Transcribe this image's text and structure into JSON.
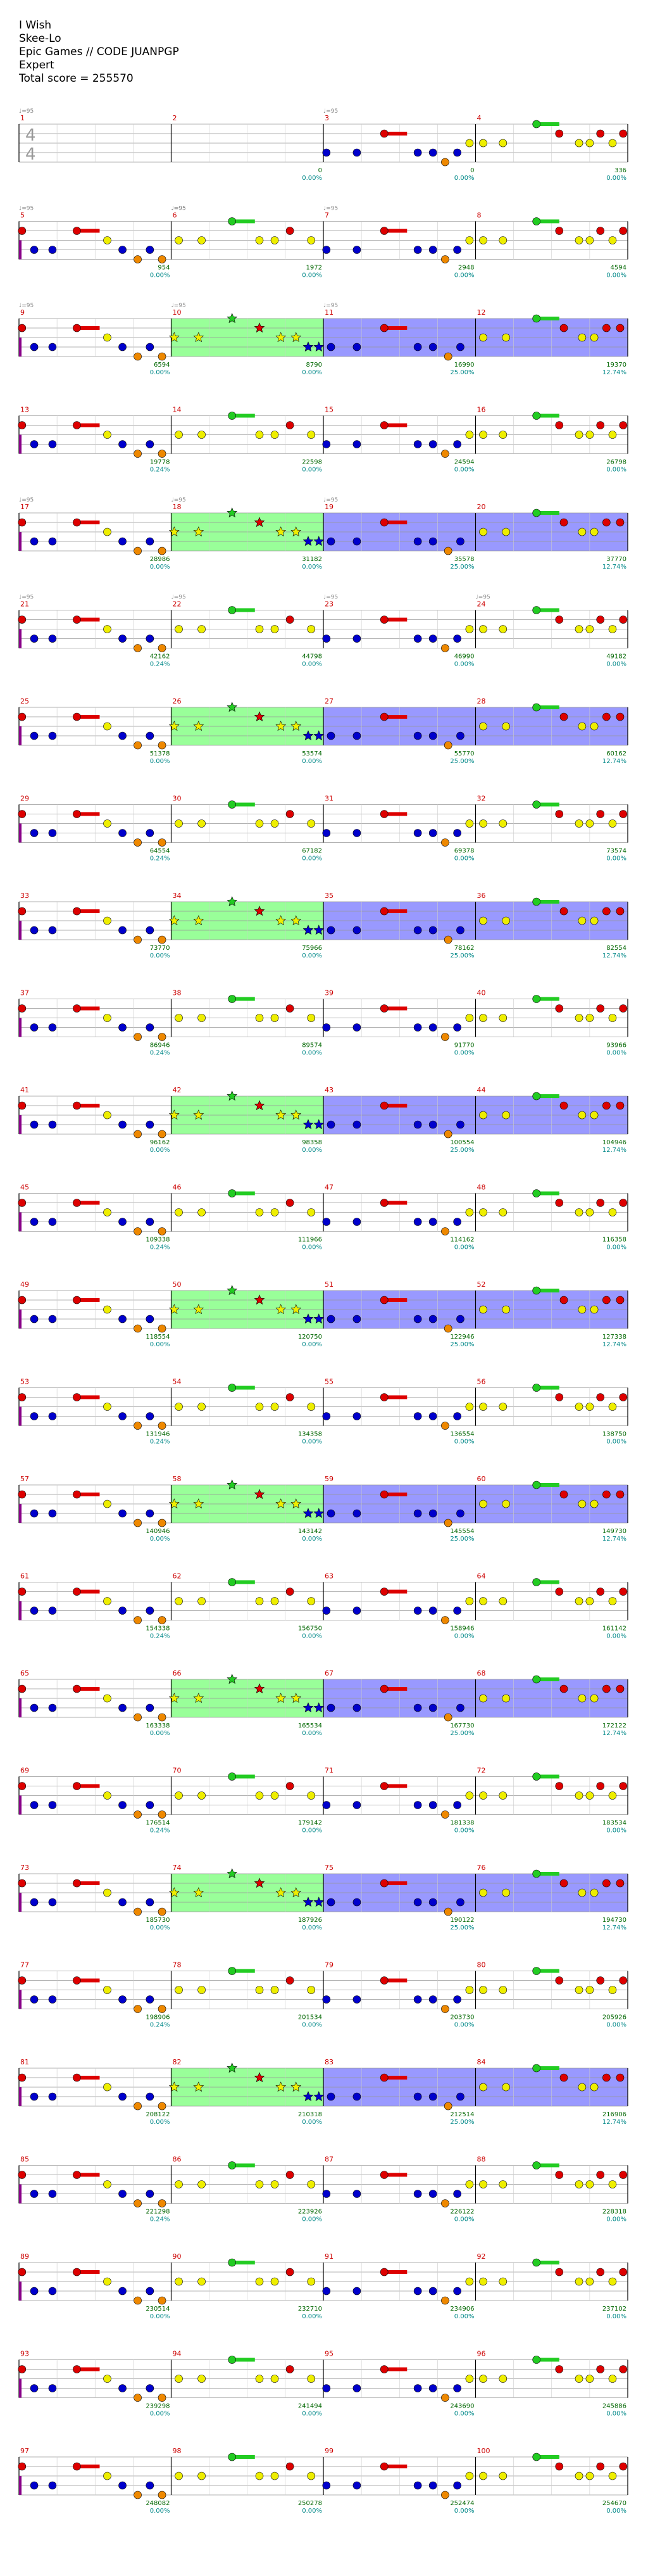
{
  "header": {
    "song": "I Wish",
    "artist": "Skee-Lo",
    "charter": "Epic Games // CODE JUANPGP",
    "difficulty": "Expert",
    "total_score": "Total score = 255570"
  },
  "time_signature": [
    "4",
    "4"
  ],
  "tempo_marks": [
    {
      "measure": 1,
      "text": "♩=95"
    },
    {
      "measure": 3,
      "text": "♩=95"
    },
    {
      "measure": 5,
      "text": "♩=95"
    },
    {
      "measure": 6,
      "text": "♩=95"
    },
    {
      "measure": 6,
      "text": "♩=95"
    },
    {
      "measure": 7,
      "text": "♩=95"
    },
    {
      "measure": 9,
      "text": "♩=95"
    },
    {
      "measure": 10,
      "text": "♩=95"
    },
    {
      "measure": 11,
      "text": "♩=95"
    },
    {
      "measure": 17,
      "text": "♩=95"
    },
    {
      "measure": 18,
      "text": "♩=95"
    },
    {
      "measure": 19,
      "text": "♩=95"
    },
    {
      "measure": 21,
      "text": "♩=95"
    },
    {
      "measure": 22,
      "text": "♩=95"
    },
    {
      "measure": 23,
      "text": "♩=95"
    },
    {
      "measure": 24,
      "text": "♩=95"
    }
  ],
  "colors": {
    "green": "#22cc22",
    "red": "#dd0000",
    "yellow": "#eeee00",
    "blue": "#0000cc",
    "orange": "#ee8800",
    "purple": "#880088",
    "starpower_bg": "#99ff99",
    "solo_bg": "#9999ff",
    "measure_num": "#cc0000",
    "score_text": "#006600",
    "pct_text": "#008888"
  },
  "measures": [
    {
      "n": "1",
      "score": "",
      "pct": "",
      "type": "intro"
    },
    {
      "n": "2",
      "score": "0",
      "pct": "0.00%",
      "type": "intro"
    },
    {
      "n": "3",
      "score": "0",
      "pct": "0.00%",
      "type": "A"
    },
    {
      "n": "4",
      "score": "336",
      "pct": "0.00%",
      "type": "B"
    },
    {
      "n": "5",
      "score": "954",
      "pct": "0.00%",
      "type": "C"
    },
    {
      "n": "6",
      "score": "1972",
      "pct": "0.00%",
      "type": "D"
    },
    {
      "n": "7",
      "score": "2948",
      "pct": "0.00%",
      "type": "A"
    },
    {
      "n": "8",
      "score": "4594",
      "pct": "0.00%",
      "type": "B"
    },
    {
      "n": "9",
      "score": "6594",
      "pct": "0.00%",
      "type": "C"
    },
    {
      "n": "10",
      "score": "8790",
      "pct": "0.00%",
      "type": "SP"
    },
    {
      "n": "11",
      "score": "16990",
      "pct": "25.00%",
      "type": "SOLO1"
    },
    {
      "n": "12",
      "score": "19370",
      "pct": "12.74%",
      "type": "SOLO2"
    },
    {
      "n": "13",
      "score": "19778",
      "pct": "0.24%",
      "type": "C"
    },
    {
      "n": "14",
      "score": "22598",
      "pct": "0.00%",
      "type": "D"
    },
    {
      "n": "15",
      "score": "24594",
      "pct": "0.00%",
      "type": "A"
    },
    {
      "n": "16",
      "score": "26798",
      "pct": "0.00%",
      "type": "B"
    },
    {
      "n": "17",
      "score": "28986",
      "pct": "0.00%",
      "type": "C"
    },
    {
      "n": "18",
      "score": "31182",
      "pct": "0.00%",
      "type": "SP"
    },
    {
      "n": "19",
      "score": "35578",
      "pct": "25.00%",
      "type": "SOLO1"
    },
    {
      "n": "20",
      "score": "37770",
      "pct": "12.74%",
      "type": "SOLO2"
    },
    {
      "n": "21",
      "score": "42162",
      "pct": "0.24%",
      "type": "C"
    },
    {
      "n": "22",
      "score": "44798",
      "pct": "0.00%",
      "type": "D"
    },
    {
      "n": "23",
      "score": "46990",
      "pct": "0.00%",
      "type": "A"
    },
    {
      "n": "24",
      "score": "49182",
      "pct": "0.00%",
      "type": "B"
    },
    {
      "n": "25",
      "score": "51378",
      "pct": "0.00%",
      "type": "C"
    },
    {
      "n": "26",
      "score": "53574",
      "pct": "0.00%",
      "type": "SP"
    },
    {
      "n": "27",
      "score": "55770",
      "pct": "25.00%",
      "type": "SOLO1"
    },
    {
      "n": "28",
      "score": "60162",
      "pct": "12.74%",
      "type": "SOLO2"
    },
    {
      "n": "29",
      "score": "64554",
      "pct": "0.24%",
      "type": "C"
    },
    {
      "n": "30",
      "score": "67182",
      "pct": "0.00%",
      "type": "D"
    },
    {
      "n": "31",
      "score": "69378",
      "pct": "0.00%",
      "type": "A"
    },
    {
      "n": "32",
      "score": "73574",
      "pct": "0.00%",
      "type": "B"
    },
    {
      "n": "33",
      "score": "73770",
      "pct": "0.00%",
      "type": "C"
    },
    {
      "n": "34",
      "score": "75966",
      "pct": "0.00%",
      "type": "SP"
    },
    {
      "n": "35",
      "score": "78162",
      "pct": "25.00%",
      "type": "SOLO1"
    },
    {
      "n": "36",
      "score": "82554",
      "pct": "12.74%",
      "type": "SOLO2"
    },
    {
      "n": "37",
      "score": "86946",
      "pct": "0.24%",
      "type": "C"
    },
    {
      "n": "38",
      "score": "89574",
      "pct": "0.00%",
      "type": "D"
    },
    {
      "n": "39",
      "score": "91770",
      "pct": "0.00%",
      "type": "A"
    },
    {
      "n": "40",
      "score": "93966",
      "pct": "0.00%",
      "type": "B"
    },
    {
      "n": "41",
      "score": "96162",
      "pct": "0.00%",
      "type": "C"
    },
    {
      "n": "42",
      "score": "98358",
      "pct": "0.00%",
      "type": "SP"
    },
    {
      "n": "43",
      "score": "100554",
      "pct": "25.00%",
      "type": "SOLO1"
    },
    {
      "n": "44",
      "score": "104946",
      "pct": "12.74%",
      "type": "SOLO2"
    },
    {
      "n": "45",
      "score": "109338",
      "pct": "0.24%",
      "type": "C"
    },
    {
      "n": "46",
      "score": "111966",
      "pct": "0.00%",
      "type": "D"
    },
    {
      "n": "47",
      "score": "114162",
      "pct": "0.00%",
      "type": "A"
    },
    {
      "n": "48",
      "score": "116358",
      "pct": "0.00%",
      "type": "B"
    },
    {
      "n": "49",
      "score": "118554",
      "pct": "0.00%",
      "type": "C"
    },
    {
      "n": "50",
      "score": "120750",
      "pct": "0.00%",
      "type": "SP"
    },
    {
      "n": "51",
      "score": "122946",
      "pct": "25.00%",
      "type": "SOLO1"
    },
    {
      "n": "52",
      "score": "127338",
      "pct": "12.74%",
      "type": "SOLO2"
    },
    {
      "n": "53",
      "score": "131946",
      "pct": "0.24%",
      "type": "C"
    },
    {
      "n": "54",
      "score": "134358",
      "pct": "0.00%",
      "type": "D"
    },
    {
      "n": "55",
      "score": "136554",
      "pct": "0.00%",
      "type": "A"
    },
    {
      "n": "56",
      "score": "138750",
      "pct": "0.00%",
      "type": "B"
    },
    {
      "n": "57",
      "score": "140946",
      "pct": "0.00%",
      "type": "C"
    },
    {
      "n": "58",
      "score": "143142",
      "pct": "0.00%",
      "type": "SP"
    },
    {
      "n": "59",
      "score": "145554",
      "pct": "25.00%",
      "type": "SOLO1"
    },
    {
      "n": "60",
      "score": "149730",
      "pct": "12.74%",
      "type": "SOLO2"
    },
    {
      "n": "61",
      "score": "154338",
      "pct": "0.24%",
      "type": "C"
    },
    {
      "n": "62",
      "score": "156750",
      "pct": "0.00%",
      "type": "D"
    },
    {
      "n": "63",
      "score": "158946",
      "pct": "0.00%",
      "type": "A"
    },
    {
      "n": "64",
      "score": "161142",
      "pct": "0.00%",
      "type": "B"
    },
    {
      "n": "65",
      "score": "163338",
      "pct": "0.00%",
      "type": "C"
    },
    {
      "n": "66",
      "score": "165534",
      "pct": "0.00%",
      "type": "SP"
    },
    {
      "n": "67",
      "score": "167730",
      "pct": "25.00%",
      "type": "SOLO1"
    },
    {
      "n": "68",
      "score": "172122",
      "pct": "12.74%",
      "type": "SOLO2"
    },
    {
      "n": "69",
      "score": "176514",
      "pct": "0.24%",
      "type": "C"
    },
    {
      "n": "70",
      "score": "179142",
      "pct": "0.00%",
      "type": "D"
    },
    {
      "n": "71",
      "score": "181338",
      "pct": "0.00%",
      "type": "A"
    },
    {
      "n": "72",
      "score": "183534",
      "pct": "0.00%",
      "type": "B"
    },
    {
      "n": "73",
      "score": "185730",
      "pct": "0.00%",
      "type": "C"
    },
    {
      "n": "74",
      "score": "187926",
      "pct": "0.00%",
      "type": "SP"
    },
    {
      "n": "75",
      "score": "190122",
      "pct": "25.00%",
      "type": "SOLO1"
    },
    {
      "n": "76",
      "score": "194730",
      "pct": "12.74%",
      "type": "SOLO2"
    },
    {
      "n": "77",
      "score": "198906",
      "pct": "0.24%",
      "type": "C"
    },
    {
      "n": "78",
      "score": "201534",
      "pct": "0.00%",
      "type": "D"
    },
    {
      "n": "79",
      "score": "203730",
      "pct": "0.00%",
      "type": "A"
    },
    {
      "n": "80",
      "score": "205926",
      "pct": "0.00%",
      "type": "B"
    },
    {
      "n": "81",
      "score": "208122",
      "pct": "0.00%",
      "type": "C"
    },
    {
      "n": "82",
      "score": "210318",
      "pct": "0.00%",
      "type": "SP"
    },
    {
      "n": "83",
      "score": "212514",
      "pct": "25.00%",
      "type": "SOLO1"
    },
    {
      "n": "84",
      "score": "216906",
      "pct": "12.74%",
      "type": "SOLO2"
    },
    {
      "n": "85",
      "score": "221298",
      "pct": "0.24%",
      "type": "C"
    },
    {
      "n": "86",
      "score": "223926",
      "pct": "0.00%",
      "type": "D"
    },
    {
      "n": "87",
      "score": "226122",
      "pct": "0.00%",
      "type": "A"
    },
    {
      "n": "88",
      "score": "228318",
      "pct": "0.00%",
      "type": "B"
    },
    {
      "n": "89",
      "score": "230514",
      "pct": "0.00%",
      "type": "C"
    },
    {
      "n": "90",
      "score": "232710",
      "pct": "0.00%",
      "type": "D"
    },
    {
      "n": "91",
      "score": "234906",
      "pct": "0.00%",
      "type": "A"
    },
    {
      "n": "92",
      "score": "237102",
      "pct": "0.00%",
      "type": "B"
    },
    {
      "n": "93",
      "score": "239298",
      "pct": "0.00%",
      "type": "C"
    },
    {
      "n": "94",
      "score": "241494",
      "pct": "0.00%",
      "type": "D"
    },
    {
      "n": "95",
      "score": "243690",
      "pct": "0.00%",
      "type": "A"
    },
    {
      "n": "96",
      "score": "245886",
      "pct": "0.00%",
      "type": "B"
    },
    {
      "n": "97",
      "score": "248082",
      "pct": "0.00%",
      "type": "C"
    },
    {
      "n": "98",
      "score": "250278",
      "pct": "0.00%",
      "type": "D"
    },
    {
      "n": "99",
      "score": "252474",
      "pct": "0.00%",
      "type": "A"
    },
    {
      "n": "100",
      "score": "254670",
      "pct": "0.00%",
      "type": "B"
    },
    {
      "n": "",
      "score": "255570",
      "pct": "0.00%",
      "type": "end"
    }
  ]
}
